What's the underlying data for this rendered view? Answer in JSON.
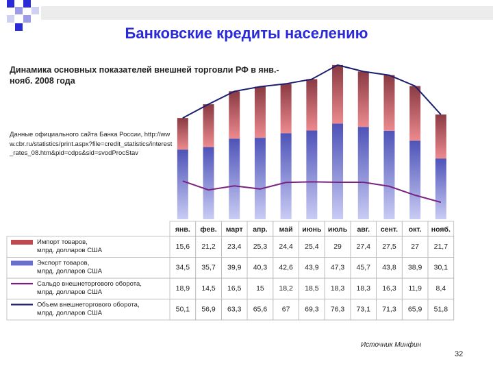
{
  "slide": {
    "title": "Банковские кредиты населению",
    "page_number": "32",
    "source_note": "Источник Минфин"
  },
  "chart_data": {
    "type": "bar",
    "title": "Динамика основных показателей внешней торговли РФ в янв.-нояб. 2008 года",
    "subtitle": "Данные официального сайта Банка России, http://www.cbr.ru/statistics/print.aspx?file=credit_statistics/interest_rates_08.htm&pid=cdps&sid=svodProcStav",
    "categories": [
      "янв.",
      "фев.",
      "март",
      "апр.",
      "май",
      "июнь",
      "июль",
      "авг.",
      "сент.",
      "окт.",
      "нояб."
    ],
    "series": [
      {
        "name": "Импорт товаров, млрд. долларов США",
        "kind": "stacked-bar",
        "color": "#c0484f",
        "values": [
          15.6,
          21.2,
          23.4,
          25.3,
          24.4,
          25.4,
          29,
          27.4,
          27.5,
          27,
          21.7
        ],
        "labels": [
          "15,6",
          "21,2",
          "23,4",
          "25,3",
          "24,4",
          "25,4",
          "29",
          "27,4",
          "27,5",
          "27",
          "21,7"
        ]
      },
      {
        "name": "Экспорт товаров, млрд. долларов США",
        "kind": "stacked-bar",
        "color": "#6a6fcf",
        "values": [
          34.5,
          35.7,
          39.9,
          40.3,
          42.6,
          43.9,
          47.3,
          45.7,
          43.8,
          38.9,
          30.1
        ],
        "labels": [
          "34,5",
          "35,7",
          "39,9",
          "40,3",
          "42,6",
          "43,9",
          "47,3",
          "45,7",
          "43,8",
          "38,9",
          "30,1"
        ]
      },
      {
        "name": "Сальдо внешнеторгового оборота, млрд. долларов США",
        "kind": "line",
        "color": "#7a2282",
        "values": [
          18.9,
          14.5,
          16.5,
          15,
          18.2,
          18.5,
          18.3,
          18.3,
          16.3,
          11.9,
          8.4
        ],
        "labels": [
          "18,9",
          "14,5",
          "16,5",
          "15",
          "18,2",
          "18,5",
          "18,3",
          "18,3",
          "16,3",
          "11,9",
          "8,4"
        ]
      },
      {
        "name": "Объем внешнеторгового оборота, млрд. долларов США",
        "kind": "line",
        "color": "#1a1f6e",
        "values": [
          50.1,
          56.9,
          63.3,
          65.6,
          67,
          69.3,
          76.3,
          73.1,
          71.3,
          65.9,
          51.8
        ],
        "labels": [
          "50,1",
          "56,9",
          "63,3",
          "65,6",
          "67",
          "69,3",
          "76,3",
          "73,1",
          "71,3",
          "65,9",
          "51,8"
        ]
      }
    ],
    "ylim": [
      0,
      80
    ],
    "grid": false,
    "legend": "data-table-below"
  }
}
